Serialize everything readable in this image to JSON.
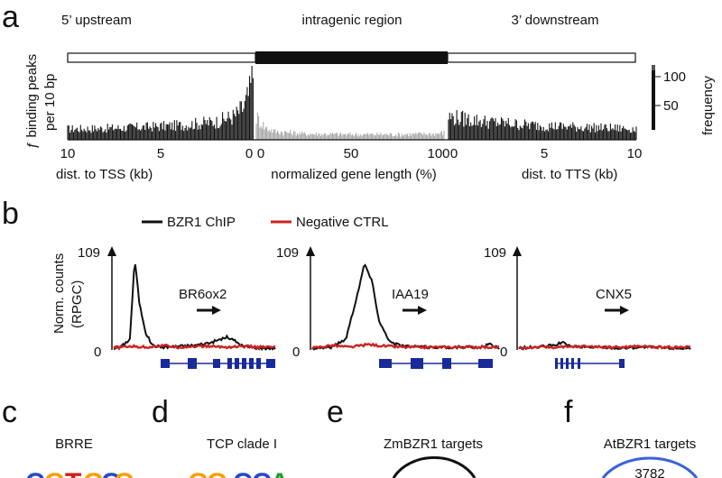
{
  "panel_letters": {
    "a": "a",
    "b": "b",
    "c": "c",
    "d": "d",
    "e": "e",
    "f": "f"
  },
  "panel_a": {
    "region_labels": {
      "upstream": "5’ upstream",
      "intragenic": "intragenic region",
      "downstream": "3’ downstream"
    },
    "ylabel_line1": "ƒ binding peaks",
    "ylabel_line2": "per 10 bp",
    "right_axis_label": "frequency",
    "right_ticks": [
      "100",
      "50"
    ],
    "x_ticks_left": [
      "10",
      "5",
      "0"
    ],
    "x_ticks_mid": [
      "0",
      "50",
      "100"
    ],
    "x_ticks_right": [
      "0",
      "5",
      "10"
    ],
    "xlabel_left": "dist. to TSS (kb)",
    "xlabel_mid": "normalized gene length (%)",
    "xlabel_right": "dist. to TTS (kb)"
  },
  "panel_b": {
    "legend": {
      "chip": "BZR1 ChIP",
      "neg": "Negative CTRL"
    },
    "ylabel_line1": "Norm. counts",
    "ylabel_line2": "(RPGC)",
    "ymax_label": "109",
    "ymin_label": "0",
    "genes": [
      "BR6ox2",
      "IAA19",
      "CNX5"
    ],
    "colors": {
      "chip": "#111111",
      "neg": "#cc2222",
      "gene": "#1a2a9a"
    }
  },
  "panel_c": {
    "title": "BRRE",
    "logo": [
      "C",
      "G",
      "T",
      "G",
      "C",
      "G"
    ]
  },
  "panel_d": {
    "title": "TCP clade I",
    "logo": [
      "G",
      "G",
      "G",
      "C",
      "C",
      "A"
    ]
  },
  "panel_e": {
    "title": "ZmBZR1 targets"
  },
  "panel_f": {
    "title": "AtBZR1 targets",
    "count": "3782"
  },
  "chart_data": [
    {
      "type": "bar",
      "title": "",
      "xlabel": "dist. to TSS (kb) | normalized gene length (%) | dist. to TTS (kb)",
      "ylabel": "ƒ binding peaks per 10 bp",
      "segments": [
        {
          "name": "5’ upstream",
          "x": [
            10,
            8,
            6,
            4,
            2,
            1,
            0.5,
            0.2,
            0
          ],
          "values": [
            18,
            19,
            21,
            24,
            30,
            40,
            55,
            80,
            118
          ]
        },
        {
          "name": "intragenic region",
          "x": [
            0,
            5,
            10,
            25,
            50,
            75,
            95,
            100
          ],
          "values": [
            38,
            20,
            14,
            10,
            9,
            9,
            10,
            12
          ]
        },
        {
          "name": "3’ downstream",
          "x": [
            0,
            2,
            4,
            6,
            8,
            10
          ],
          "values": [
            38,
            30,
            25,
            22,
            20,
            18
          ]
        }
      ],
      "right_axis": {
        "label": "frequency",
        "ticks": [
          50,
          100
        ]
      }
    },
    {
      "type": "line",
      "ylabel": "Norm. counts (RPGC)",
      "ylim": [
        0,
        109
      ],
      "tracks": [
        {
          "gene": "BR6ox2",
          "series": [
            {
              "name": "BZR1 ChIP",
              "x": [
                0,
                0.05,
                0.1,
                0.13,
                0.16,
                0.2,
                0.24,
                0.3,
                0.4,
                0.5,
                0.6,
                0.7,
                0.75,
                0.8,
                0.85,
                0.9,
                1
              ],
              "values": [
                2,
                4,
                12,
                100,
                50,
                18,
                5,
                3,
                4,
                5,
                8,
                14,
                10,
                4,
                3,
                2,
                2
              ]
            },
            {
              "name": "Negative CTRL",
              "x": [
                0,
                0.1,
                0.2,
                0.3,
                0.4,
                0.5,
                0.6,
                0.7,
                0.8,
                0.9,
                1
              ],
              "values": [
                2,
                4,
                3,
                5,
                3,
                4,
                4,
                3,
                4,
                3,
                3
              ]
            }
          ]
        },
        {
          "gene": "IAA19",
          "series": [
            {
              "name": "BZR1 ChIP",
              "x": [
                0,
                0.1,
                0.18,
                0.24,
                0.28,
                0.32,
                0.36,
                0.42,
                0.5,
                0.6,
                0.7,
                0.8,
                0.9,
                0.95,
                1
              ],
              "values": [
                2,
                3,
                12,
                60,
                95,
                75,
                30,
                8,
                4,
                3,
                3,
                3,
                3,
                6,
                2
              ]
            },
            {
              "name": "Negative CTRL",
              "x": [
                0,
                0.1,
                0.2,
                0.3,
                0.4,
                0.5,
                0.6,
                0.7,
                0.8,
                0.9,
                1
              ],
              "values": [
                2,
                5,
                3,
                6,
                4,
                3,
                3,
                3,
                3,
                3,
                3
              ]
            }
          ]
        },
        {
          "gene": "CNX5",
          "series": [
            {
              "name": "BZR1 ChIP",
              "x": [
                0,
                0.1,
                0.2,
                0.25,
                0.3,
                0.4,
                0.5,
                0.6,
                0.7,
                0.8,
                0.9,
                1
              ],
              "values": [
                2,
                3,
                5,
                8,
                4,
                3,
                3,
                2,
                3,
                3,
                2,
                2
              ]
            },
            {
              "name": "Negative CTRL",
              "x": [
                0,
                0.1,
                0.2,
                0.3,
                0.4,
                0.5,
                0.6,
                0.7,
                0.8,
                0.9,
                1
              ],
              "values": [
                2,
                3,
                3,
                3,
                4,
                3,
                3,
                4,
                3,
                3,
                3
              ]
            }
          ]
        }
      ]
    }
  ]
}
